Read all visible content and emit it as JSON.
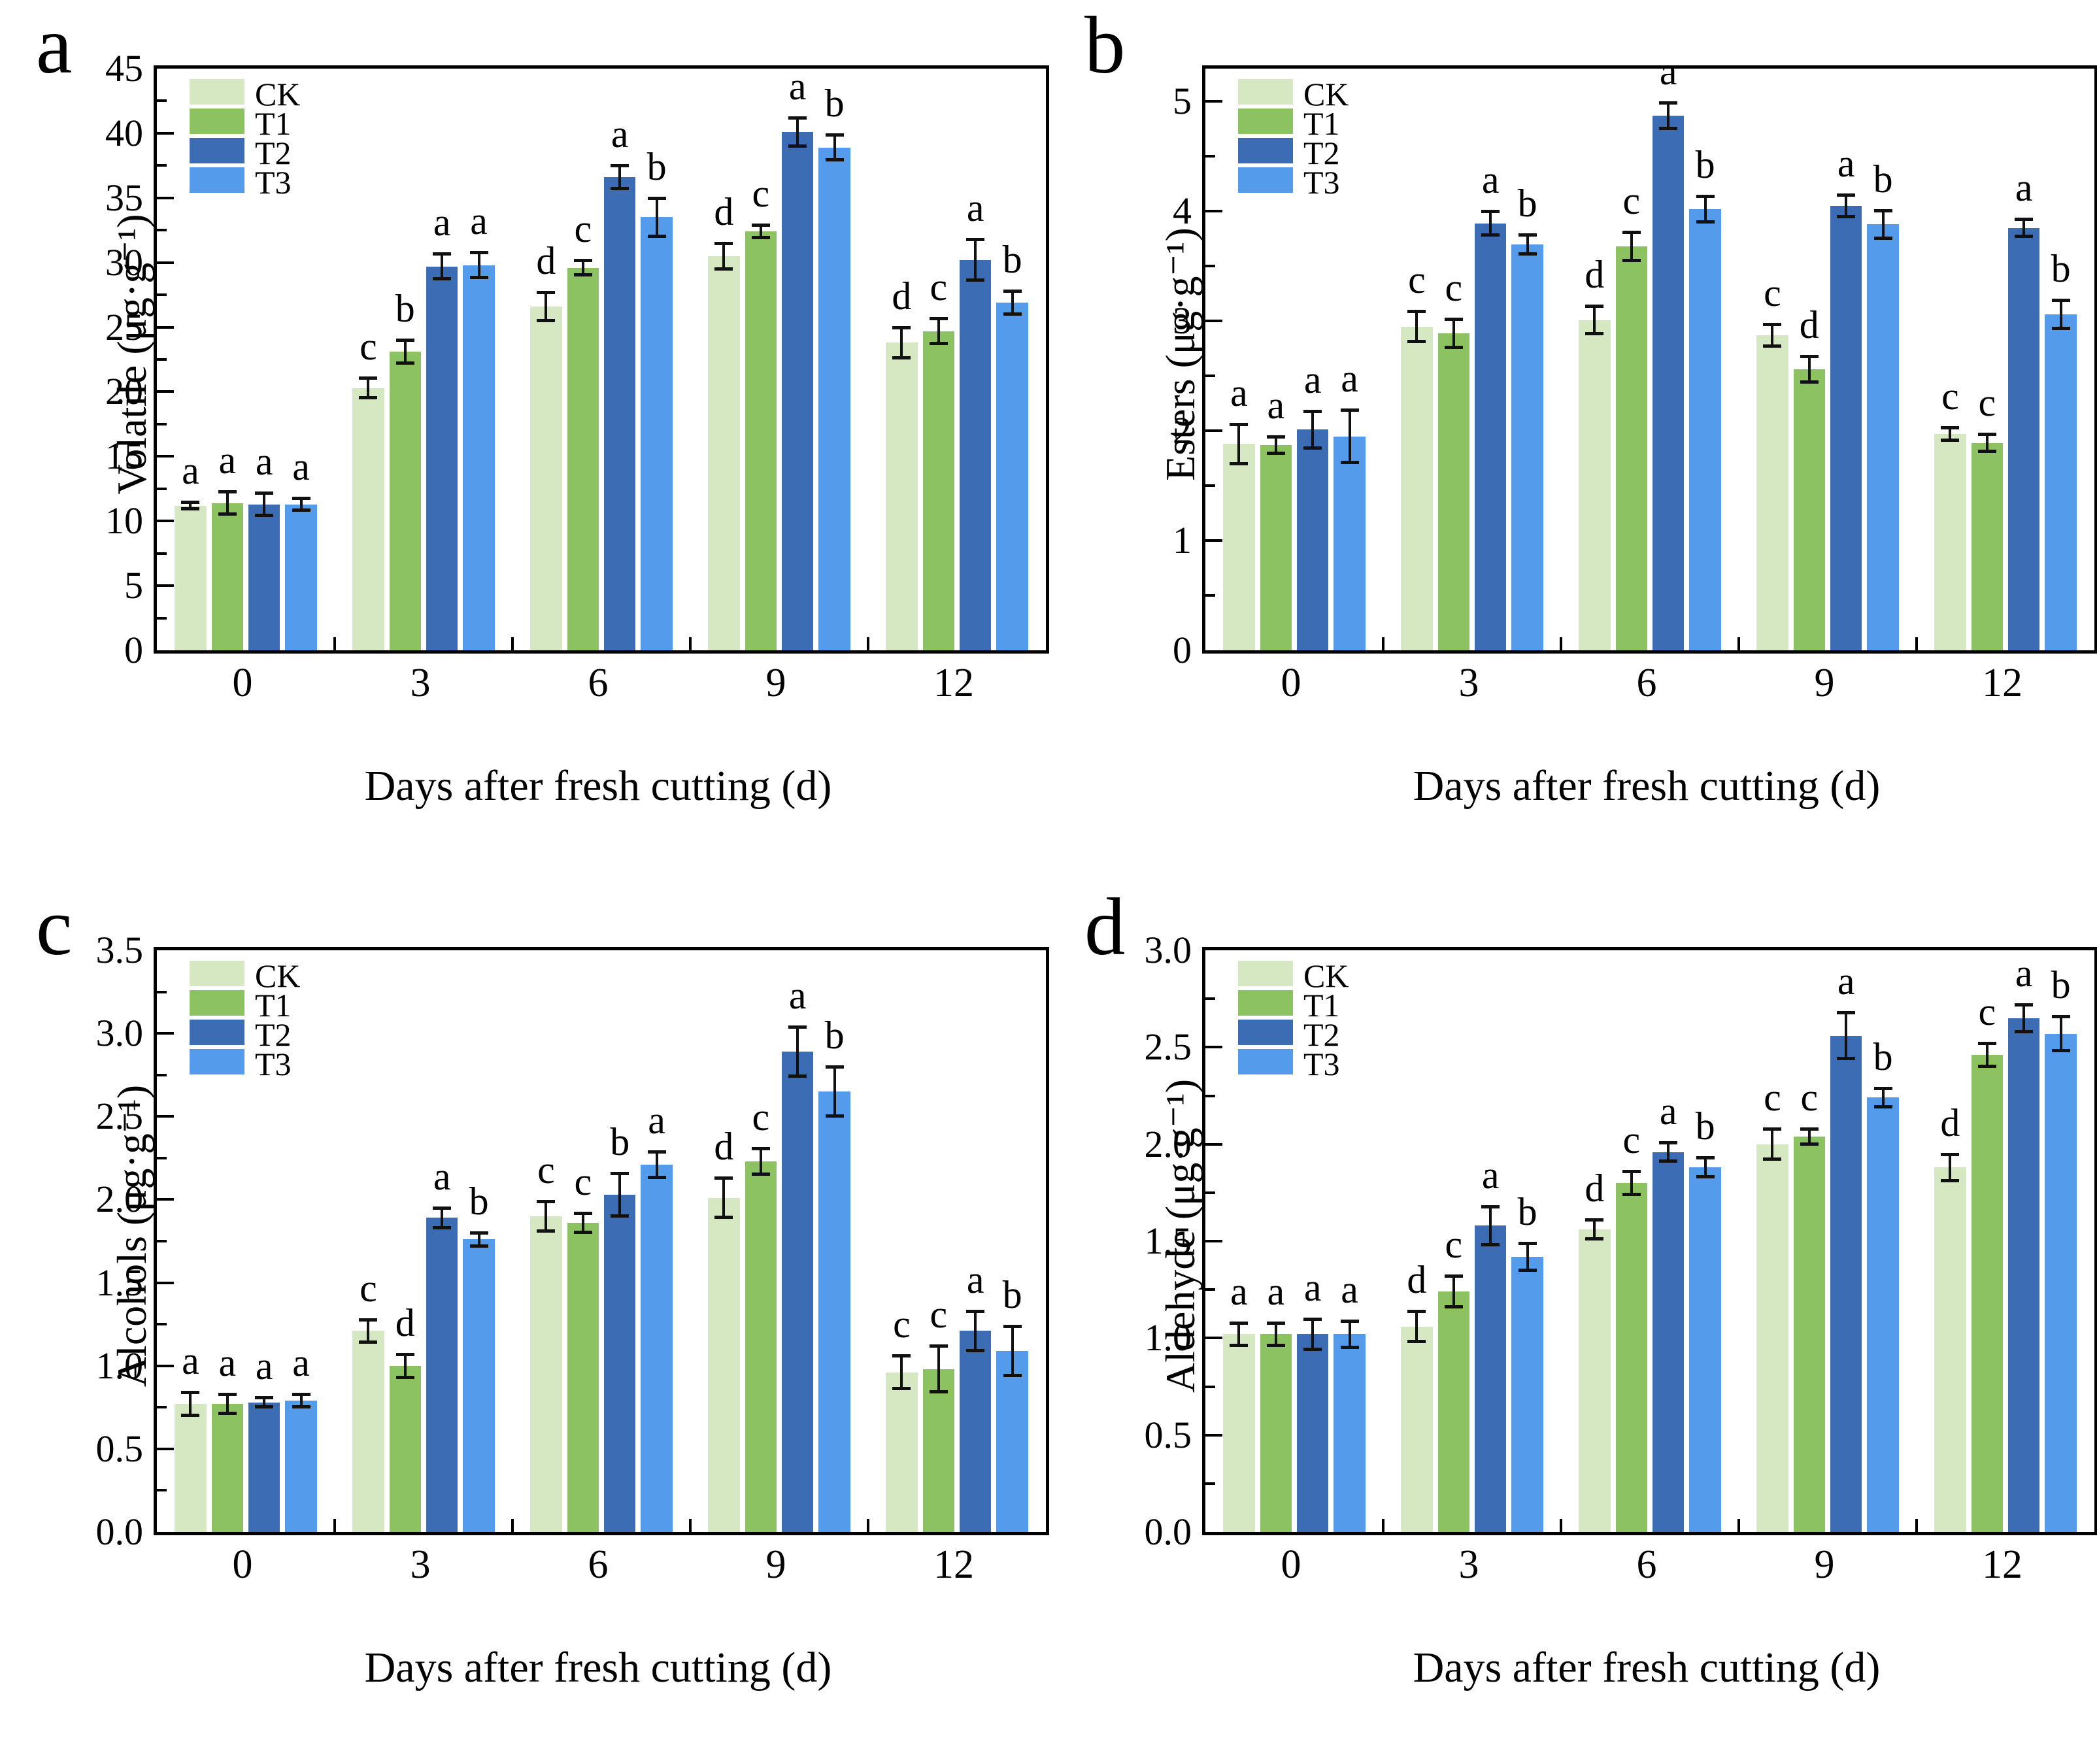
{
  "figure_type": "2x2 grouped bar chart figure",
  "x_axis_title": "Days after fresh cutting (d)",
  "categories": [
    "0",
    "3",
    "6",
    "9",
    "12"
  ],
  "legend": [
    "CK",
    "T1",
    "T2",
    "T3"
  ],
  "colors": {
    "CK": "#d6e8c2",
    "T1": "#8dc263",
    "T2": "#3c6db4",
    "T3": "#549bec",
    "error_bar": "#111111",
    "axis": "#000000"
  },
  "chart_data": {
    "type": "bar",
    "grid": false,
    "legend_position": "top-left inside plot",
    "panels": [
      {
        "letter": "a",
        "ylabel": "Volatile (μg·g⁻¹)",
        "xlabel": "Days after fresh cutting (d)",
        "categories": [
          "0",
          "3",
          "6",
          "9",
          "12"
        ],
        "ylim": [
          0,
          45
        ],
        "ymax_display": 45,
        "ytick_major": 5,
        "ytick_minor": 2.5,
        "ytick_decimals": 0,
        "series": [
          {
            "name": "CK",
            "color": "#d6e8c2",
            "values": [
              11.2,
              20.3,
              26.6,
              30.5,
              23.8
            ],
            "errors": [
              0.3,
              0.8,
              1.1,
              1.0,
              1.2
            ],
            "letters": [
              "a",
              "c",
              "d",
              "d",
              "d"
            ]
          },
          {
            "name": "T1",
            "color": "#8dc263",
            "values": [
              11.4,
              23.1,
              29.6,
              32.4,
              24.7
            ],
            "errors": [
              0.9,
              0.9,
              0.6,
              0.5,
              1.0
            ],
            "letters": [
              "a",
              "b",
              "c",
              "c",
              "c"
            ]
          },
          {
            "name": "T2",
            "color": "#3c6db4",
            "values": [
              11.3,
              29.7,
              36.6,
              40.1,
              30.2
            ],
            "errors": [
              0.9,
              1.0,
              0.9,
              1.1,
              1.6
            ],
            "letters": [
              "a",
              "a",
              "a",
              "a",
              "a"
            ]
          },
          {
            "name": "T3",
            "color": "#549bec",
            "values": [
              11.3,
              29.8,
              33.5,
              38.9,
              26.9
            ],
            "errors": [
              0.5,
              1.0,
              1.5,
              1.0,
              0.9
            ],
            "letters": [
              "a",
              "a",
              "b",
              "b",
              "b"
            ]
          }
        ]
      },
      {
        "letter": "b",
        "ylabel": "Esters (μg·g⁻¹)",
        "xlabel": "Days after fresh cutting (d)",
        "categories": [
          "0",
          "3",
          "6",
          "9",
          "12"
        ],
        "ylim": [
          0,
          5.3
        ],
        "ymax_display": 5,
        "ytick_major": 1,
        "ytick_minor": 0.5,
        "ytick_decimals": 0,
        "series": [
          {
            "name": "CK",
            "color": "#d6e8c2",
            "values": [
              1.88,
              2.95,
              3.01,
              2.87,
              1.97
            ],
            "errors": [
              0.18,
              0.14,
              0.13,
              0.1,
              0.06
            ],
            "letters": [
              "a",
              "c",
              "d",
              "c",
              "c"
            ]
          },
          {
            "name": "T1",
            "color": "#8dc263",
            "values": [
              1.87,
              2.89,
              3.68,
              2.56,
              1.89
            ],
            "errors": [
              0.08,
              0.13,
              0.13,
              0.12,
              0.08
            ],
            "letters": [
              "a",
              "c",
              "c",
              "d",
              "c"
            ]
          },
          {
            "name": "T2",
            "color": "#3c6db4",
            "values": [
              2.01,
              3.89,
              4.87,
              4.05,
              3.85
            ],
            "errors": [
              0.17,
              0.11,
              0.12,
              0.1,
              0.08
            ],
            "letters": [
              "a",
              "a",
              "a",
              "a",
              "a"
            ]
          },
          {
            "name": "T3",
            "color": "#549bec",
            "values": [
              1.95,
              3.7,
              4.02,
              3.88,
              3.06
            ],
            "errors": [
              0.24,
              0.09,
              0.12,
              0.13,
              0.13
            ],
            "letters": [
              "a",
              "b",
              "b",
              "b",
              "b"
            ]
          }
        ]
      },
      {
        "letter": "c",
        "ylabel": "Alcohols (μg·g⁻¹)",
        "xlabel": "Days after fresh cutting (d)",
        "categories": [
          "0",
          "3",
          "6",
          "9",
          "12"
        ],
        "ylim": [
          0,
          3.5
        ],
        "ymax_display": 3.5,
        "ytick_major": 0.5,
        "ytick_minor": 0.25,
        "ytick_decimals": 1,
        "series": [
          {
            "name": "CK",
            "color": "#d6e8c2",
            "values": [
              0.77,
              1.21,
              1.9,
              2.01,
              0.96
            ],
            "errors": [
              0.07,
              0.07,
              0.09,
              0.12,
              0.1
            ],
            "letters": [
              "a",
              "c",
              "c",
              "d",
              "c"
            ]
          },
          {
            "name": "T1",
            "color": "#8dc263",
            "values": [
              0.77,
              1.0,
              1.86,
              2.23,
              0.98
            ],
            "errors": [
              0.06,
              0.07,
              0.06,
              0.08,
              0.14
            ],
            "letters": [
              "a",
              "d",
              "c",
              "c",
              "c"
            ]
          },
          {
            "name": "T2",
            "color": "#3c6db4",
            "values": [
              0.78,
              1.89,
              2.03,
              2.89,
              1.21
            ],
            "errors": [
              0.03,
              0.06,
              0.13,
              0.15,
              0.12
            ],
            "letters": [
              "a",
              "a",
              "b",
              "a",
              "a"
            ]
          },
          {
            "name": "T3",
            "color": "#549bec",
            "values": [
              0.79,
              1.76,
              2.21,
              2.65,
              1.09
            ],
            "errors": [
              0.04,
              0.04,
              0.08,
              0.15,
              0.15
            ],
            "letters": [
              "a",
              "b",
              "a",
              "b",
              "b"
            ]
          }
        ]
      },
      {
        "letter": "d",
        "ylabel": "Aldehyde (μg·g⁻¹)",
        "xlabel": "Days after fresh cutting (d)",
        "categories": [
          "0",
          "3",
          "6",
          "9",
          "12"
        ],
        "ylim": [
          0,
          3.0
        ],
        "ymax_display": 3.0,
        "ytick_major": 0.5,
        "ytick_minor": 0.25,
        "ytick_decimals": 1,
        "series": [
          {
            "name": "CK",
            "color": "#d6e8c2",
            "values": [
              1.02,
              1.06,
              1.56,
              2.0,
              1.88
            ],
            "errors": [
              0.06,
              0.08,
              0.05,
              0.08,
              0.07
            ],
            "letters": [
              "a",
              "d",
              "d",
              "c",
              "d"
            ]
          },
          {
            "name": "T1",
            "color": "#8dc263",
            "values": [
              1.02,
              1.24,
              1.8,
              2.04,
              2.46
            ],
            "errors": [
              0.06,
              0.08,
              0.06,
              0.04,
              0.06
            ],
            "letters": [
              "a",
              "c",
              "c",
              "c",
              "c"
            ]
          },
          {
            "name": "T2",
            "color": "#3c6db4",
            "values": [
              1.02,
              1.58,
              1.96,
              2.56,
              2.65
            ],
            "errors": [
              0.08,
              0.1,
              0.05,
              0.12,
              0.07
            ],
            "letters": [
              "a",
              "a",
              "a",
              "a",
              "a"
            ]
          },
          {
            "name": "T3",
            "color": "#549bec",
            "values": [
              1.02,
              1.42,
              1.88,
              2.24,
              2.57
            ],
            "errors": [
              0.07,
              0.07,
              0.05,
              0.05,
              0.09
            ],
            "letters": [
              "a",
              "b",
              "b",
              "b",
              "b"
            ]
          }
        ]
      }
    ]
  }
}
